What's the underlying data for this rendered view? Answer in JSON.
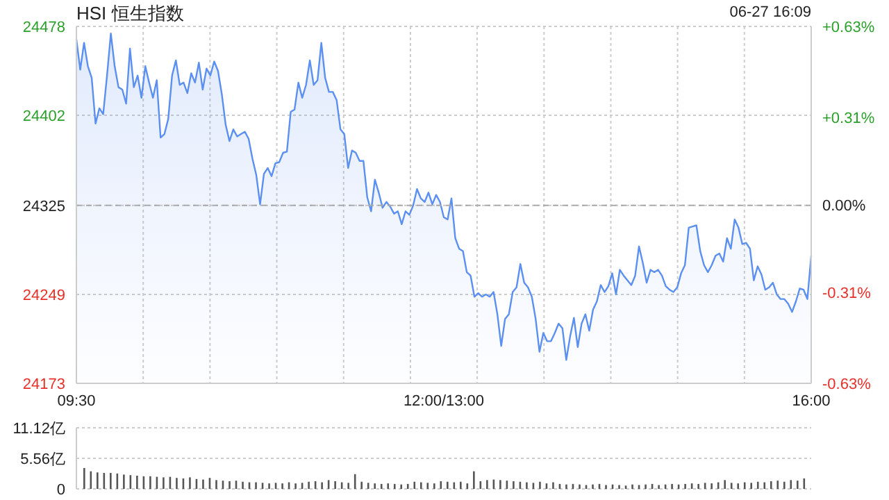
{
  "chart_data": [
    {
      "type": "area",
      "title": "HSI 恒生指数",
      "annotations": [
        "06-27 16:09"
      ],
      "categories": [
        "09:30",
        null,
        null,
        null,
        null,
        null,
        null,
        null,
        null,
        null,
        null,
        null,
        null,
        null,
        null,
        null,
        null,
        null,
        null,
        null,
        null,
        null,
        null,
        null,
        null,
        null,
        null,
        null,
        null,
        null,
        null,
        null,
        null,
        null,
        null,
        null,
        null,
        null,
        null,
        null,
        null,
        null,
        null,
        null,
        null,
        null,
        null,
        null,
        null,
        null,
        null,
        null,
        null,
        null,
        null,
        null,
        null,
        null,
        null,
        null,
        null,
        null,
        null,
        null,
        null,
        null,
        null,
        null,
        null,
        null,
        null,
        null,
        null,
        null,
        null,
        null,
        null,
        null,
        null,
        null,
        null,
        null,
        null,
        null,
        null,
        null,
        null,
        null,
        null,
        null,
        null,
        null,
        null,
        null,
        null,
        null,
        "12:00/13:00",
        null,
        null,
        null,
        null,
        null,
        null,
        null,
        null,
        null,
        null,
        null,
        null,
        null,
        null,
        null,
        null,
        null,
        null,
        null,
        null,
        null,
        null,
        null,
        null,
        null,
        null,
        null,
        null,
        null,
        null,
        null,
        null,
        null,
        null,
        null,
        null,
        null,
        null,
        null,
        null,
        null,
        null,
        null,
        null,
        null,
        null,
        null,
        null,
        null,
        null,
        null,
        null,
        null,
        null,
        null,
        null,
        null,
        null,
        null,
        null,
        null,
        null,
        null,
        null,
        null,
        null,
        null,
        null,
        null,
        null,
        null,
        null,
        null,
        null,
        null,
        null,
        null,
        null,
        null,
        null,
        null,
        null,
        null,
        null,
        null,
        null,
        null,
        null,
        null,
        null,
        null,
        null,
        null,
        null,
        null,
        "16:00"
      ],
      "series": [
        {
          "color": "#5b8ff0",
          "values": [
            24467,
            24441,
            24464,
            24444,
            24434,
            24395,
            24408,
            24403,
            24436,
            24472,
            24444,
            24426,
            24424,
            24412,
            24459,
            24426,
            24436,
            24417,
            24444,
            24430,
            24417,
            24432,
            24383,
            24386,
            24399,
            24436,
            24449,
            24428,
            24430,
            24421,
            24438,
            24430,
            24447,
            24424,
            24442,
            24436,
            24448,
            24440,
            24420,
            24394,
            24380,
            24390,
            24384,
            24386,
            24388,
            24382,
            24365,
            24351,
            24326,
            24352,
            24357,
            24350,
            24361,
            24362,
            24370,
            24371,
            24405,
            24407,
            24430,
            24417,
            24428,
            24449,
            24428,
            24432,
            24464,
            24434,
            24422,
            24422,
            24415,
            24390,
            24386,
            24357,
            24372,
            24370,
            24363,
            24363,
            24332,
            24320,
            24347,
            24336,
            24323,
            24328,
            24324,
            24318,
            24320,
            24309,
            24320,
            24317,
            24325,
            24339,
            24331,
            24328,
            24336,
            24326,
            24334,
            24328,
            24315,
            24313,
            24331,
            24297,
            24288,
            24286,
            24268,
            24265,
            24247,
            24250,
            24247,
            24249,
            24247,
            24251,
            24232,
            24205,
            24228,
            24232,
            24251,
            24255,
            24275,
            24259,
            24255,
            24247,
            24228,
            24200,
            24216,
            24209,
            24209,
            24216,
            24224,
            24220,
            24193,
            24213,
            24229,
            24204,
            24224,
            24232,
            24218,
            24236,
            24243,
            24257,
            24251,
            24256,
            24267,
            24249,
            24270,
            24265,
            24261,
            24257,
            24265,
            24290,
            24276,
            24259,
            24270,
            24268,
            24270,
            24265,
            24256,
            24253,
            24251,
            24255,
            24267,
            24274,
            24306,
            24307,
            24308,
            24286,
            24274,
            24268,
            24274,
            24282,
            24284,
            24277,
            24297,
            24288,
            24313,
            24306,
            24292,
            24293,
            24288,
            24261,
            24273,
            24266,
            24253,
            24255,
            24259,
            24249,
            24245,
            24245,
            24241,
            24234,
            24243,
            24254,
            24253,
            24245,
            24282
          ]
        }
      ],
      "ylim": [
        24173,
        24478
      ],
      "yticks": [
        24173,
        24249,
        24325,
        24402,
        24478
      ],
      "y2lim": [
        -0.63,
        0.63
      ],
      "y2ticks": [
        {
          "value": -0.63,
          "label": "-0.63%"
        },
        {
          "value": -0.31,
          "label": "-0.31%"
        },
        {
          "value": 0,
          "label": "0.00%"
        },
        {
          "value": 0.31,
          "label": "+0.31%"
        },
        {
          "value": 0.63,
          "label": "+0.63%"
        }
      ],
      "ref_lines": [
        {
          "axis": "y",
          "value": 24325,
          "label": null,
          "color": "#aaaaaa",
          "line_style": "dashed"
        }
      ],
      "grid": true
    },
    {
      "type": "bar",
      "tick_labels": "y",
      "grid": "y",
      "categories": [
        null,
        null,
        null,
        null,
        null,
        null,
        null,
        null,
        null,
        null,
        null,
        null,
        null,
        null,
        null,
        null,
        null,
        null,
        null,
        null,
        null,
        null,
        null,
        null,
        null,
        null,
        null,
        null,
        null,
        null,
        null,
        null,
        null,
        null,
        null,
        null,
        null,
        null,
        null,
        null,
        null,
        null,
        null,
        null,
        null,
        null,
        null,
        null,
        null,
        null,
        null,
        null,
        null,
        null,
        null,
        null,
        null,
        null,
        null,
        null,
        null,
        null,
        null,
        null,
        null,
        null,
        null,
        null,
        null,
        null,
        null,
        null,
        null,
        null,
        null,
        null,
        null,
        null,
        null,
        null,
        null,
        null,
        null,
        null,
        null,
        null,
        null,
        null,
        null,
        null,
        null,
        null,
        null,
        null,
        null,
        null,
        null,
        null,
        null,
        null,
        null,
        null,
        null,
        null,
        null,
        null,
        null,
        null,
        null,
        null
      ],
      "series": [
        {
          "color": "#555555",
          "values": [
            3.8,
            3.2,
            3.0,
            2.9,
            2.9,
            2.8,
            2.6,
            2.5,
            2.4,
            2.3,
            2.3,
            2.2,
            2.1,
            2.2,
            2.0,
            1.9,
            2.1,
            1.8,
            1.7,
            2.0,
            1.6,
            1.5,
            1.4,
            1.5,
            1.3,
            1.2,
            1.2,
            1.1,
            1.0,
            1.1,
            1.0,
            1.2,
            1.0,
            1.1,
            1.3,
            1.4,
            1.2,
            1.6,
            1.4,
            1.2,
            1.1,
            2.7,
            1.3,
            1.1,
            1.0,
            0.9,
            1.0,
            0.9,
            0.8,
            0.9,
            1.3,
            1.2,
            1.1,
            1.0,
            1.4,
            1.3,
            1.2,
            1.3,
            1.0,
            3.2,
            1.4,
            1.6,
            1.7,
            1.6,
            1.5,
            1.4,
            1.3,
            1.2,
            1.1,
            1.3,
            1.0,
            1.2,
            0.9,
            0.8,
            0.9,
            0.8,
            0.7,
            0.8,
            0.9,
            0.7,
            0.8,
            0.7,
            0.6,
            0.8,
            0.7,
            0.8,
            0.9,
            0.7,
            0.8,
            0.9,
            0.8,
            0.9,
            1.0,
            0.9,
            1.1,
            1.0,
            1.2,
            1.6,
            1.1,
            1.0,
            1.2,
            1.1,
            1.3,
            1.2,
            1.4,
            1.5,
            1.3,
            1.6,
            1.5,
            1.9
          ]
        }
      ],
      "ylim": [
        0,
        11.12
      ],
      "yticks": [
        {
          "value": 0,
          "label": "0"
        },
        {
          "value": 5.56,
          "label": "5.56亿"
        },
        {
          "value": 11.12,
          "label": "11.12亿"
        }
      ]
    }
  ]
}
